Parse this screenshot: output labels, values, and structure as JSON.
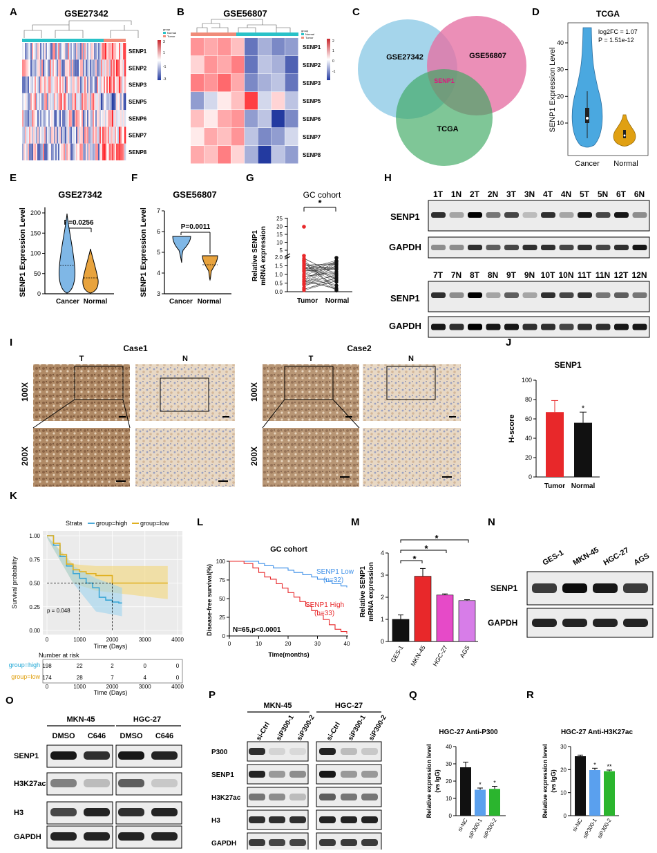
{
  "panel_letters": {
    "A": "A",
    "B": "B",
    "C": "C",
    "D": "D",
    "E": "E",
    "F": "F",
    "G": "G",
    "H": "H",
    "I": "I",
    "J": "J",
    "K": "K",
    "L": "L",
    "M": "M",
    "N": "N",
    "O": "O",
    "P": "P",
    "Q": "Q",
    "R": "R"
  },
  "colors": {
    "red": "#e8282a",
    "blue_light": "#7fb7e6",
    "orange": "#e8a33d",
    "pink": "#e64ac8",
    "violet": "#d77de8",
    "green": "#2bb52e",
    "black": "#111111",
    "heat_red": "#c8282e",
    "heat_blue": "#233aa0",
    "venn_blue": "#8ecae6",
    "venn_pink": "#e66fa3",
    "venn_green": "#5fb97a",
    "teal": "#29c2c8",
    "salmon": "#f08b79"
  },
  "panel_a": {
    "title": "GSE27342",
    "legend_title": "group",
    "legend_normal": "Normal",
    "legend_tumor": "Tumor",
    "scale_hi": "3",
    "scale_mid1": "1",
    "scale_mid2": "-1",
    "scale_lo": "-3",
    "genes": [
      "SENP1",
      "SENP2",
      "SENP3",
      "SENP5",
      "SENP6",
      "SENP7",
      "SENP8"
    ]
  },
  "panel_b": {
    "title": "GSE56807",
    "legend_title": "group",
    "legend_normal": "Normal",
    "legend_tumor": "Tumor",
    "scale_hi": "2",
    "scale_mid1": "1",
    "scale_mid2": "0",
    "scale_mid3": "-1",
    "genes": [
      "SENP1",
      "SENP2",
      "SENP3",
      "SENP5",
      "SENP6",
      "SENP7",
      "SENP8"
    ]
  },
  "panel_c": {
    "set1": "GSE27342",
    "set2": "GSE56807",
    "set3": "TCGA",
    "center": "SENP1"
  },
  "panel_d": {
    "title": "TCGA",
    "annot1": "log2FC = 1.07",
    "annot2": "P = 1.51e-12",
    "ylabel": "SENP1 Expression Level",
    "ticks": [
      "10",
      "20",
      "30",
      "40"
    ],
    "xcats": [
      "Cancer",
      "Normal"
    ]
  },
  "panel_e": {
    "title": "GSE27342",
    "ylabel": "SENP1 Expression Level",
    "pval": "P=0.0256",
    "ticks": [
      "0",
      "50",
      "100",
      "150",
      "200"
    ],
    "xcats": [
      "Cancer",
      "Normal"
    ]
  },
  "panel_f": {
    "title": "GSE56807",
    "ylabel": "SENP1 Expression Level",
    "pval": "P=0.0011",
    "ticks": [
      "3",
      "4",
      "5",
      "6",
      "7"
    ],
    "xcats": [
      "Cancer",
      "Normal"
    ]
  },
  "panel_g": {
    "title": "GC cohort",
    "ylabel1": "Relative SENP1",
    "ylabel2": "mRNA expression",
    "star": "*",
    "ticks": [
      "0.0",
      "0.5",
      "1.0",
      "1.5",
      "2.0",
      "5",
      "10",
      "15",
      "20",
      "25"
    ],
    "xcats": [
      "Tumor",
      "Normal"
    ]
  },
  "panel_h": {
    "top_lanes": [
      "1T",
      "1N",
      "2T",
      "2N",
      "3T",
      "3N",
      "4T",
      "4N",
      "5T",
      "5N",
      "6T",
      "6N"
    ],
    "bottom_lanes": [
      "7T",
      "7N",
      "8T",
      "8N",
      "9T",
      "9N",
      "10T",
      "10N",
      "11T",
      "11N",
      "12T",
      "12N"
    ],
    "band1": "SENP1",
    "band2": "GAPDH"
  },
  "panel_i": {
    "case1": "Case1",
    "case2": "Case2",
    "t": "T",
    "n": "N",
    "mag1": "100X",
    "mag2": "200X"
  },
  "panel_j": {
    "title": "SENP1",
    "ylabel": "H-score",
    "star": "*",
    "ticks": [
      "0",
      "20",
      "40",
      "60",
      "80",
      "100"
    ],
    "xcats": [
      "Tumor",
      "Normal"
    ]
  },
  "chart_data": [
    {
      "type": "bar",
      "title": "SENP1",
      "ylabel": "H-score",
      "categories": [
        "Tumor",
        "Normal"
      ],
      "values": [
        67,
        56
      ],
      "errors": [
        12,
        11
      ],
      "ylim": [
        0,
        100
      ]
    },
    {
      "type": "bar",
      "title": "",
      "ylabel": "Relative SENP1 mRNA expression",
      "categories": [
        "GES-1",
        "MKN-45",
        "HGC-27",
        "AGS"
      ],
      "values": [
        1.0,
        2.95,
        2.1,
        1.85
      ],
      "errors": [
        0.2,
        0.35,
        0.05,
        0.04
      ],
      "ylim": [
        0,
        4
      ]
    },
    {
      "type": "bar",
      "title": "HGC-27 Anti-P300",
      "ylabel": "Relative expression level (vs IgG)",
      "categories": [
        "si-NC",
        "siP300-1",
        "siP300-2"
      ],
      "values": [
        28,
        15,
        15.5
      ],
      "errors": [
        3,
        1,
        1.5
      ],
      "ylim": [
        0,
        40
      ]
    },
    {
      "type": "bar",
      "title": "HGC-27 Anti-H3K27ac",
      "ylabel": "Relative expression level (vs IgG)",
      "categories": [
        "si-NC",
        "siP300-1",
        "siP300-2"
      ],
      "values": [
        25.8,
        19.8,
        19.3
      ],
      "errors": [
        0.5,
        0.8,
        0.5
      ],
      "ylim": [
        0,
        30
      ]
    },
    {
      "type": "line",
      "title": "GC cohort",
      "ylabel": "Disease-free survival(%)",
      "xlabel": "Time(months)",
      "xlim": [
        0,
        40
      ],
      "ylim": [
        0,
        100
      ],
      "series": [
        {
          "name": "SENP1 Low (n=32)",
          "x": [
            0,
            5,
            10,
            12,
            15,
            18,
            20,
            22,
            25,
            28,
            30,
            33,
            35,
            38,
            40
          ],
          "y": [
            100,
            100,
            97,
            94,
            91,
            91,
            88,
            85,
            82,
            79,
            76,
            73,
            70,
            67,
            65
          ]
        },
        {
          "name": "SENP1 High (n=33)",
          "x": [
            0,
            5,
            8,
            10,
            12,
            14,
            16,
            18,
            20,
            22,
            24,
            26,
            28,
            30,
            32,
            34,
            36,
            38,
            40
          ],
          "y": [
            100,
            97,
            91,
            85,
            79,
            76,
            70,
            64,
            58,
            52,
            46,
            40,
            34,
            28,
            22,
            15,
            9,
            6,
            3
          ]
        }
      ]
    },
    {
      "type": "line",
      "title": "",
      "ylabel": "Survival probability",
      "xlabel": "Time (Days)",
      "xlim": [
        0,
        4000
      ],
      "ylim": [
        0,
        1
      ],
      "series": [
        {
          "name": "group=high",
          "x": [
            0,
            200,
            400,
            600,
            800,
            1000,
            1200,
            1400,
            1600,
            1800,
            2000,
            2200,
            2300
          ],
          "y": [
            1.0,
            0.9,
            0.78,
            0.68,
            0.6,
            0.55,
            0.5,
            0.45,
            0.35,
            0.32,
            0.3,
            0.29,
            0.29
          ]
        },
        {
          "name": "group=low",
          "x": [
            0,
            200,
            400,
            600,
            800,
            1000,
            1200,
            1500,
            2000,
            2500,
            3000,
            3500,
            3700
          ],
          "y": [
            1.0,
            0.92,
            0.8,
            0.7,
            0.64,
            0.62,
            0.6,
            0.58,
            0.5,
            0.5,
            0.5,
            0.5,
            0.5
          ]
        }
      ]
    }
  ],
  "panel_k": {
    "strata": "Strata",
    "high": "group=high",
    "low": "group=low",
    "ylabel": "Survival probability",
    "xlabel": "Time (Days)",
    "pval": "p = 0.048",
    "yticks": [
      "0.00",
      "0.25",
      "0.50",
      "0.75",
      "1.00"
    ],
    "xticks": [
      "0",
      "1000",
      "2000",
      "3000",
      "4000"
    ],
    "risk_title": "Number at risk",
    "risk_high": [
      "198",
      "22",
      "2",
      "0",
      "0"
    ],
    "risk_low": [
      "174",
      "28",
      "7",
      "4",
      "0"
    ]
  },
  "panel_l": {
    "title": "GC cohort",
    "ylabel": "Disease-free survival(%)",
    "xlabel": "Time(months)",
    "low1": "SENP1 Low",
    "low2": "(n=32)",
    "high1": "SENP1 High",
    "high2": "(n=33)",
    "stat": "N=65,p<0.0001",
    "yticks": [
      "0",
      "25",
      "50",
      "75",
      "100"
    ],
    "xticks": [
      "0",
      "10",
      "20",
      "30",
      "40"
    ]
  },
  "panel_m": {
    "ylabel1": "Relative SENP1",
    "ylabel2": "mRNA expression",
    "star": "*",
    "ticks": [
      "0",
      "1",
      "2",
      "3",
      "4"
    ],
    "xcats": [
      "GES-1",
      "MKN-45",
      "HGC-27",
      "AGS"
    ]
  },
  "panel_n": {
    "lanes": [
      "GES-1",
      "MKN-45",
      "HGC-27",
      "AGS"
    ],
    "band1": "SENP1",
    "band2": "GAPDH"
  },
  "panel_o": {
    "g1": "MKN-45",
    "g2": "HGC-27",
    "lanes": [
      "DMSO",
      "C646",
      "DMSO",
      "C646"
    ],
    "bands": [
      "SENP1",
      "H3K27ac",
      "H3",
      "GAPDH"
    ]
  },
  "panel_p": {
    "g1": "MKN-45",
    "g2": "HGC-27",
    "lanes": [
      "si-Ctrl",
      "siP300-1",
      "siP300-2",
      "si-Ctrl",
      "siP300-1",
      "siP300-2"
    ],
    "bands": [
      "P300",
      "SENP1",
      "H3K27ac",
      "H3",
      "GAPDH"
    ]
  },
  "panel_q": {
    "title": "HGC-27 Anti-P300",
    "ylabel1": "Relative  expression level",
    "ylabel2": "(vs IgG)",
    "ticks": [
      "0",
      "10",
      "20",
      "30",
      "40"
    ],
    "xcats": [
      "si-NC",
      "siP300-1",
      "siP300-2"
    ],
    "stars": [
      "*",
      "*"
    ]
  },
  "panel_r": {
    "title": "HGC-27 Anti-H3K27ac",
    "ylabel1": "Relative  expression level",
    "ylabel2": "(vs IgG)",
    "ticks": [
      "0",
      "10",
      "20",
      "30"
    ],
    "xcats": [
      "si-NC",
      "siP300-1",
      "siP300-2"
    ],
    "stars": [
      "*",
      "**"
    ]
  }
}
